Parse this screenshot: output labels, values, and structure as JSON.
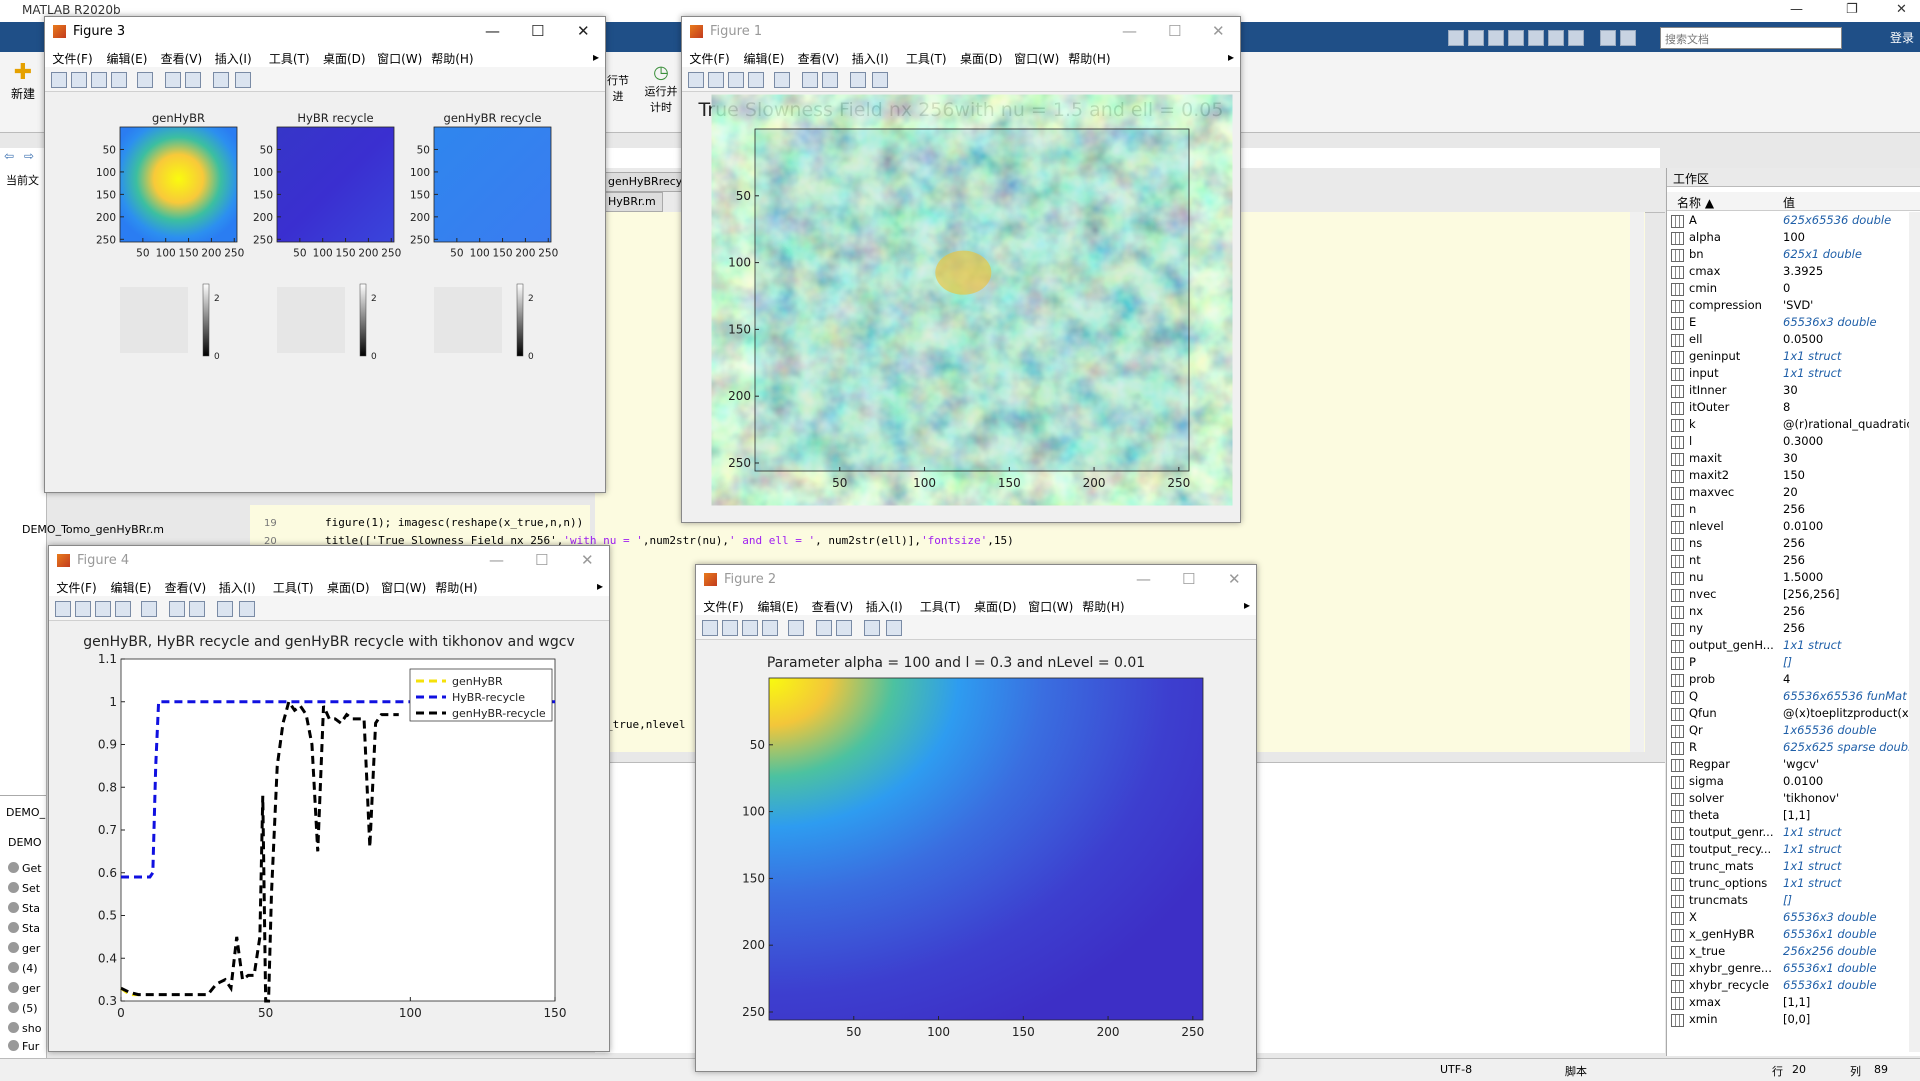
{
  "app": {
    "title": "MATLAB R2020b",
    "search_placeholder": "搜索文档",
    "login": "登录"
  },
  "ribbon": {
    "new_label": "新建",
    "run_section": "行节",
    "run_section2": "进",
    "run_timer": "运行并",
    "run_timer2": "计时"
  },
  "editor": {
    "tab1": "genHyBRrecyc",
    "tab2": "HyBRr.m",
    "line_num1": "19",
    "line_num2": "20",
    "code_prev": "figure(1); imagesc(reshape(x_true,n,n))",
    "code_title_a": "title(['True Slowness Field nx 256',",
    "code_title_b": "'with nu = '",
    "code_title_c": ",num2str(nu),",
    "code_title_d": "' and ell = '",
    "code_title_e": ", num2str(ell)],",
    "code_title_f": "'fontsize'",
    "code_title_g": ",15)",
    "code_frag": "_true,nlevel"
  },
  "left_panel": {
    "label": "当前文",
    "files": [
      "DEMO_Tomo_genHyBRr.m"
    ],
    "bottom_title": "DEMO_",
    "bottom_sub": "DEMO",
    "bottom_items": [
      "Get",
      "Set",
      "Sta",
      "Sta",
      "ger",
      "(4)",
      "ger",
      "(5)",
      "sho",
      "Fur"
    ]
  },
  "status": {
    "encoding": "UTF-8",
    "mode": "脚本",
    "row_label": "行",
    "row": "20",
    "col_label": "列",
    "col": "89"
  },
  "workspace": {
    "title": "工作区",
    "col_name": "名称",
    "col_value": "值",
    "vars": [
      {
        "name": "A",
        "value": "625x65536 double",
        "italic": true
      },
      {
        "name": "alpha",
        "value": "100",
        "italic": false
      },
      {
        "name": "bn",
        "value": "625x1 double",
        "italic": true
      },
      {
        "name": "cmax",
        "value": "3.3925",
        "italic": false
      },
      {
        "name": "cmin",
        "value": "0",
        "italic": false
      },
      {
        "name": "compression",
        "value": "'SVD'",
        "italic": false
      },
      {
        "name": "E",
        "value": "65536x3 double",
        "italic": true
      },
      {
        "name": "ell",
        "value": "0.0500",
        "italic": false
      },
      {
        "name": "geninput",
        "value": "1x1 struct",
        "italic": true
      },
      {
        "name": "input",
        "value": "1x1 struct",
        "italic": true
      },
      {
        "name": "itInner",
        "value": "30",
        "italic": false
      },
      {
        "name": "itOuter",
        "value": "8",
        "italic": false
      },
      {
        "name": "k",
        "value": "@(r)rational_quadratic(...",
        "italic": false
      },
      {
        "name": "l",
        "value": "0.3000",
        "italic": false
      },
      {
        "name": "maxit",
        "value": "30",
        "italic": false
      },
      {
        "name": "maxit2",
        "value": "150",
        "italic": false
      },
      {
        "name": "maxvec",
        "value": "20",
        "italic": false
      },
      {
        "name": "n",
        "value": "256",
        "italic": false
      },
      {
        "name": "nlevel",
        "value": "0.0100",
        "italic": false
      },
      {
        "name": "ns",
        "value": "256",
        "italic": false
      },
      {
        "name": "nt",
        "value": "256",
        "italic": false
      },
      {
        "name": "nu",
        "value": "1.5000",
        "italic": false
      },
      {
        "name": "nvec",
        "value": "[256,256]",
        "italic": false
      },
      {
        "name": "nx",
        "value": "256",
        "italic": false
      },
      {
        "name": "ny",
        "value": "256",
        "italic": false
      },
      {
        "name": "output_genH...",
        "value": "1x1 struct",
        "italic": true
      },
      {
        "name": "P",
        "value": "[]",
        "italic": true
      },
      {
        "name": "prob",
        "value": "4",
        "italic": false
      },
      {
        "name": "Q",
        "value": "65536x65536 funMat",
        "italic": true
      },
      {
        "name": "Qfun",
        "value": "@(x)toeplitzproduct(x,...",
        "italic": false
      },
      {
        "name": "Qr",
        "value": "1x65536 double",
        "italic": true
      },
      {
        "name": "R",
        "value": "625x625 sparse double",
        "italic": true
      },
      {
        "name": "Regpar",
        "value": "'wgcv'",
        "italic": false
      },
      {
        "name": "sigma",
        "value": "0.0100",
        "italic": false
      },
      {
        "name": "solver",
        "value": "'tikhonov'",
        "italic": false
      },
      {
        "name": "theta",
        "value": "[1,1]",
        "italic": false
      },
      {
        "name": "toutput_genr...",
        "value": "1x1 struct",
        "italic": true
      },
      {
        "name": "toutput_recy...",
        "value": "1x1 struct",
        "italic": true
      },
      {
        "name": "trunc_mats",
        "value": "1x1 struct",
        "italic": true
      },
      {
        "name": "trunc_options",
        "value": "1x1 struct",
        "italic": true
      },
      {
        "name": "truncmats",
        "value": "[]",
        "italic": true
      },
      {
        "name": "X",
        "value": "65536x3 double",
        "italic": true
      },
      {
        "name": "x_genHyBR",
        "value": "65536x1 double",
        "italic": true
      },
      {
        "name": "x_true",
        "value": "256x256 double",
        "italic": true
      },
      {
        "name": "xhybr_genre...",
        "value": "65536x1 double",
        "italic": true
      },
      {
        "name": "xhybr_recycle",
        "value": "65536x1 double",
        "italic": true
      },
      {
        "name": "xmax",
        "value": "[1,1]",
        "italic": false
      },
      {
        "name": "xmin",
        "value": "[0,0]",
        "italic": false
      }
    ]
  },
  "fig_menu": [
    "文件(F)",
    "编辑(E)",
    "查看(V)",
    "插入(I)",
    "工具(T)",
    "桌面(D)",
    "窗口(W)",
    "帮助(H)"
  ],
  "figures": {
    "fig3": {
      "title": "Figure 3"
    },
    "fig1": {
      "title": "Figure 1"
    },
    "fig4": {
      "title": "Figure 4"
    },
    "fig2": {
      "title": "Figure 2"
    }
  },
  "chart_data": [
    {
      "id": "fig3-images",
      "type": "heatmap",
      "panels": [
        {
          "title": "genHyBR",
          "xticks": [
            50,
            100,
            150,
            200,
            250
          ],
          "yticks": [
            50,
            100,
            150,
            200,
            250
          ]
        },
        {
          "title": "HyBR recycle",
          "xticks": [
            50,
            100,
            150,
            200,
            250
          ],
          "yticks": [
            50,
            100,
            150,
            200,
            250
          ]
        },
        {
          "title": "genHyBR recycle",
          "xticks": [
            50,
            100,
            150,
            200,
            250
          ],
          "yticks": [
            50,
            100,
            150,
            200,
            250
          ]
        }
      ],
      "colorbar_ticks": [
        0,
        2
      ]
    },
    {
      "id": "fig1-slowness",
      "type": "heatmap",
      "title": "True Slowness Field nx 256with nu = 1.5 and ell = 0.05",
      "xticks": [
        50,
        100,
        150,
        200,
        250
      ],
      "yticks": [
        50,
        100,
        150,
        200,
        250
      ],
      "xlim": [
        0,
        256
      ],
      "ylim": [
        0,
        256
      ]
    },
    {
      "id": "fig4-errors",
      "type": "line",
      "title": "genHyBR, HyBR recycle and genHyBR recycle with tikhonov and wgcv",
      "xlim": [
        0,
        150
      ],
      "ylim": [
        0.3,
        1.1
      ],
      "xticks": [
        0,
        50,
        100,
        150
      ],
      "yticks": [
        0.3,
        0.4,
        0.5,
        0.6,
        0.7,
        0.8,
        0.9,
        1,
        1.1
      ],
      "legend": "top-right",
      "series": [
        {
          "name": "genHyBR",
          "color": "#f5e10a",
          "x": [
            0,
            2,
            4,
            6
          ],
          "y": [
            0.33,
            0.32,
            0.315,
            0.315
          ]
        },
        {
          "name": "HyBR-recycle",
          "color": "#1010e0",
          "x": [
            0,
            10,
            11,
            12,
            13,
            150
          ],
          "y": [
            0.59,
            0.59,
            0.6,
            0.85,
            1,
            1
          ]
        },
        {
          "name": "genHyBR-recycle",
          "color": "#000000",
          "x": [
            0,
            3,
            6,
            10,
            20,
            30,
            33,
            36,
            38,
            40,
            42,
            44,
            46,
            48,
            49,
            50,
            51,
            52,
            54,
            56,
            58,
            60,
            62,
            64,
            66,
            68,
            70,
            72,
            74,
            76,
            78,
            80,
            82,
            84,
            86,
            88,
            90,
            92,
            94,
            96
          ],
          "y": [
            0.33,
            0.32,
            0.315,
            0.315,
            0.315,
            0.315,
            0.34,
            0.35,
            0.33,
            0.45,
            0.35,
            0.36,
            0.36,
            0.45,
            0.78,
            0.3,
            0.3,
            0.55,
            0.85,
            0.95,
            1,
            0.98,
            0.99,
            0.97,
            0.9,
            0.65,
            0.99,
            0.96,
            0.96,
            0.95,
            0.97,
            0.96,
            0.96,
            0.96,
            0.66,
            0.95,
            0.97,
            0.97,
            0.97,
            0.97
          ]
        }
      ]
    },
    {
      "id": "fig2-prior",
      "type": "heatmap",
      "title": "Parameter alpha = 100 and l = 0.3 and nLevel = 0.01",
      "xticks": [
        50,
        100,
        150,
        200,
        250
      ],
      "yticks": [
        50,
        100,
        150,
        200,
        250
      ],
      "xlim": [
        0,
        256
      ],
      "ylim": [
        0,
        256
      ]
    }
  ]
}
